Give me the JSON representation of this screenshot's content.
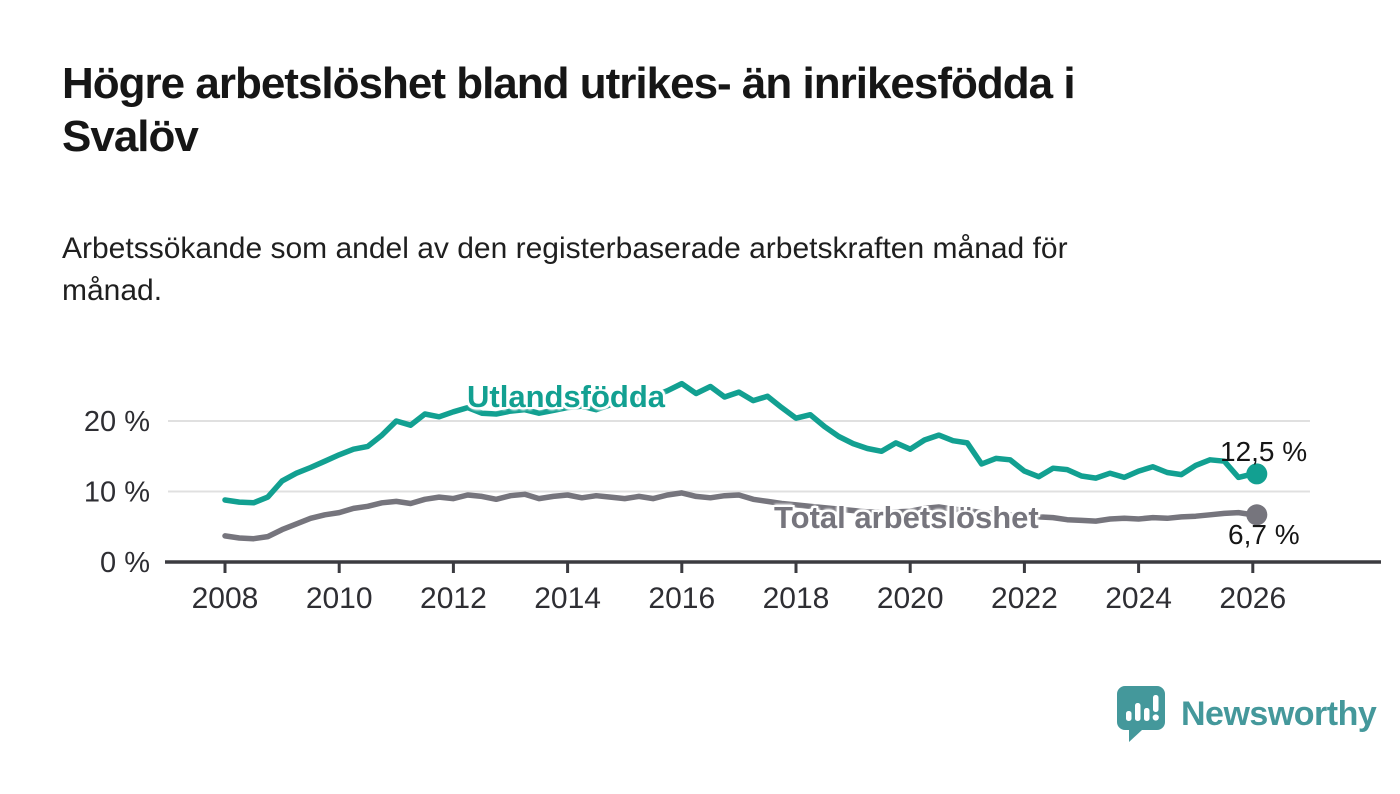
{
  "title": "Högre arbetslöshet bland utrikes- än inrikesfödda i\nSvalöv",
  "subtitle": "Arbetssökande som andel av den registerbaserade arbetskraften månad för\nmånad.",
  "colors": {
    "foreign_born_line": "#12a091",
    "total_line": "#76757d",
    "gridline": "#e0e0e0",
    "axis": "#3b3b40",
    "tick_label": "#2e2e33",
    "annotation_text": "#161616",
    "logo_teal": "#44989b",
    "background": "#ffffff"
  },
  "chart_data": {
    "type": "line",
    "title": "Högre arbetslöshet bland utrikes- än inrikesfödda i Svalöv",
    "subtitle": "Arbetssökande som andel av den registerbaserade arbetskraften månad för månad.",
    "xlabel": "",
    "ylabel": "",
    "grid": "horizontal",
    "legend_position": "inline-labels",
    "x_axis": {
      "unit": "year",
      "tick_years": [
        2008,
        2010,
        2012,
        2014,
        2016,
        2018,
        2020,
        2022,
        2024,
        2026
      ]
    },
    "y_axis": {
      "unit": "%",
      "min": 0,
      "max": 26,
      "ticks": [
        {
          "value": 0,
          "label": "0 %"
        },
        {
          "value": 10,
          "label": "10 %"
        },
        {
          "value": 20,
          "label": "20 %"
        }
      ]
    },
    "series": [
      {
        "name": "Utlandsfödda",
        "color": "#12a091",
        "end_label": "12,5 %",
        "end_value": 12.5,
        "x_start": 2008,
        "x_step": 0.25,
        "values": [
          8.8,
          8.5,
          8.4,
          9.2,
          11.5,
          12.6,
          13.4,
          14.3,
          15.2,
          16.0,
          16.4,
          18.0,
          20.0,
          19.4,
          21.0,
          20.6,
          21.3,
          21.9,
          21.1,
          21.0,
          21.4,
          21.6,
          21.1,
          21.5,
          21.9,
          22.1,
          21.6,
          22.3,
          22.7,
          23.1,
          23.5,
          24.3,
          25.3,
          23.9,
          24.9,
          23.4,
          24.1,
          22.9,
          23.5,
          21.9,
          20.4,
          20.9,
          19.2,
          17.8,
          16.8,
          16.1,
          15.7,
          16.9,
          16.0,
          17.3,
          18.0,
          17.2,
          16.9,
          13.9,
          14.7,
          14.5,
          12.9,
          12.1,
          13.3,
          13.1,
          12.2,
          11.9,
          12.6,
          12.0,
          12.9,
          13.5,
          12.7,
          12.4,
          13.7,
          14.5,
          14.3,
          12.0,
          12.5
        ]
      },
      {
        "name": "Total arbetslöshet",
        "color": "#76757d",
        "end_label": "6,7 %",
        "end_value": 6.7,
        "x_start": 2008,
        "x_step": 0.25,
        "values": [
          3.7,
          3.4,
          3.3,
          3.6,
          4.6,
          5.4,
          6.2,
          6.7,
          7.0,
          7.6,
          7.9,
          8.4,
          8.6,
          8.3,
          8.9,
          9.2,
          9.0,
          9.5,
          9.3,
          8.9,
          9.4,
          9.6,
          9.0,
          9.3,
          9.5,
          9.1,
          9.4,
          9.2,
          9.0,
          9.3,
          9.0,
          9.5,
          9.8,
          9.3,
          9.1,
          9.4,
          9.5,
          8.9,
          8.6,
          8.3,
          8.1,
          7.9,
          7.7,
          7.5,
          7.3,
          7.1,
          7.0,
          7.1,
          7.2,
          7.6,
          7.8,
          7.5,
          7.3,
          7.0,
          6.9,
          6.7,
          6.5,
          6.4,
          6.3,
          6.0,
          5.9,
          5.8,
          6.1,
          6.2,
          6.1,
          6.3,
          6.2,
          6.4,
          6.5,
          6.7,
          6.9,
          7.0,
          6.7
        ]
      }
    ]
  },
  "footer": {
    "brand": "Newsworthy"
  }
}
